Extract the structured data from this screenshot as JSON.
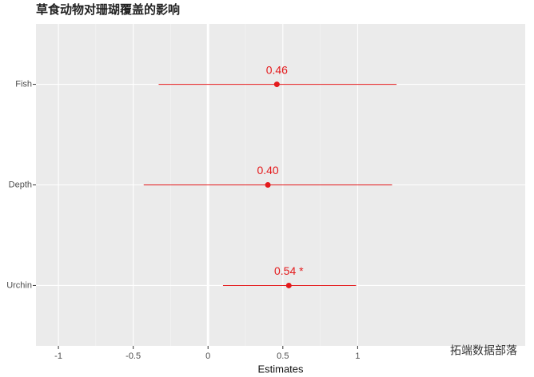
{
  "chart_data": {
    "type": "forest",
    "title": "草食动物对珊瑚覆盖的影响",
    "x_label": "Estimates",
    "categories": [
      "Fish",
      "Depth",
      "Urchin"
    ],
    "values": [
      0.46,
      0.4,
      0.54
    ],
    "value_labels": [
      "0.46",
      "0.40",
      "0.54 *"
    ],
    "lower": [
      -0.33,
      -0.43,
      0.1
    ],
    "upper": [
      1.26,
      1.23,
      0.99
    ],
    "color": "#e41a1c",
    "xlim": [
      -1.15,
      2.12
    ],
    "xticks": [
      -1,
      -0.5,
      0,
      0.5,
      1
    ],
    "grid": true,
    "watermark": "拓端数据部落"
  }
}
